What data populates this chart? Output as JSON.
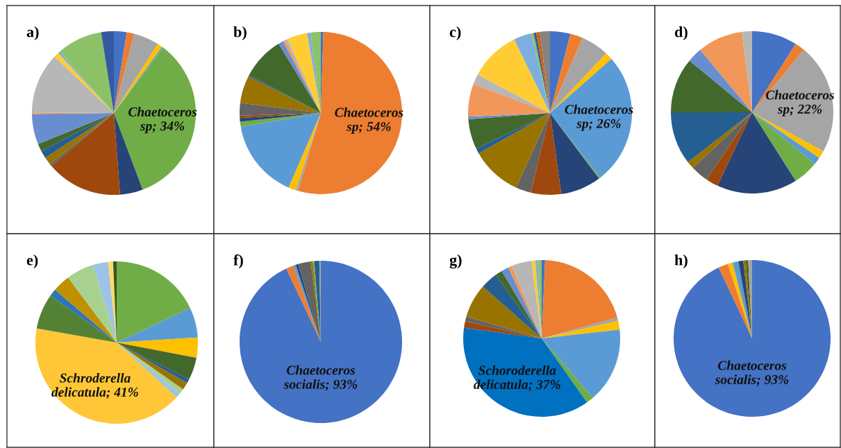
{
  "chart_data": [
    {
      "type": "pie",
      "title": "a)",
      "categories": [
        null,
        null,
        null,
        null,
        null,
        "Chaetoceros sp",
        null,
        null,
        null,
        null,
        null,
        null,
        null,
        null,
        null,
        null,
        null,
        null,
        null
      ],
      "values": [
        2.5,
        1.5,
        5,
        1,
        0.3,
        34,
        4.5,
        15,
        0.5,
        1.5,
        1.5,
        1.5,
        6,
        0.3,
        12,
        1,
        0.4,
        9,
        2.5
      ],
      "value_labels": [
        null,
        null,
        null,
        null,
        null,
        "34%",
        null,
        null,
        null,
        null,
        null,
        null,
        null,
        null,
        null,
        null,
        null,
        null,
        null
      ],
      "colors": [
        "#4472c4",
        "#ed7d31",
        "#a5a5a5",
        "#ffc000",
        "#5b9bd5",
        "#70ad47",
        "#264478",
        "#9e480e",
        "#636363",
        "#997300",
        "#255e91",
        "#43682b",
        "#698ed0",
        "#f1975a",
        "#b7b7b7",
        "#ffcd33",
        "#7cafdd",
        "#8cc168",
        "#335aa1"
      ]
    },
    {
      "type": "pie",
      "title": "b)",
      "categories": [
        null,
        "Chaetoceros sp",
        null,
        null,
        null,
        null,
        null,
        null,
        null,
        null,
        null,
        null,
        null,
        null,
        null,
        null,
        null,
        null
      ],
      "values": [
        0.5,
        54,
        0.5,
        1.5,
        15.8,
        1,
        0.7,
        0.5,
        2.5,
        5.5,
        0.3,
        8.5,
        1,
        0.5,
        0.5,
        4,
        0.7,
        2
      ],
      "value_labels": [
        null,
        "54%",
        null,
        null,
        null,
        null,
        null,
        null,
        null,
        null,
        null,
        null,
        null,
        null,
        null,
        null,
        null,
        null
      ],
      "colors": [
        "#4472c4",
        "#ed7d31",
        "#a5a5a5",
        "#ffc000",
        "#5b9bd5",
        "#70ad47",
        "#264478",
        "#9e480e",
        "#636363",
        "#997300",
        "#255e91",
        "#43682b",
        "#698ed0",
        "#f1975a",
        "#b7b7b7",
        "#ffcd33",
        "#7cafdd",
        "#8cc168"
      ]
    },
    {
      "type": "pie",
      "title": "c)",
      "categories": [
        null,
        null,
        null,
        null,
        "Chaetoceros sp",
        null,
        null,
        null,
        null,
        null,
        null,
        null,
        null,
        null,
        null,
        null,
        null,
        null,
        null,
        null,
        null
      ],
      "values": [
        4,
        2.5,
        5.5,
        1.5,
        26,
        0.3,
        8,
        6,
        3,
        10,
        1,
        6,
        0.5,
        6.5,
        2,
        10,
        3.5,
        0.5,
        0.5,
        0.7,
        2
      ],
      "value_labels": [
        null,
        null,
        null,
        null,
        "26%",
        null,
        null,
        null,
        null,
        null,
        null,
        null,
        null,
        null,
        null,
        null,
        null,
        null,
        null,
        null,
        null
      ],
      "colors": [
        "#4472c4",
        "#ed7d31",
        "#a5a5a5",
        "#ffc000",
        "#5b9bd5",
        "#70ad47",
        "#264478",
        "#9e480e",
        "#636363",
        "#997300",
        "#255e91",
        "#43682b",
        "#698ed0",
        "#f1975a",
        "#b7b7b7",
        "#ffcd33",
        "#7cafdd",
        "#8cc168",
        "#335aa1",
        "#d26012",
        "#848484"
      ]
    },
    {
      "type": "pie",
      "title": "d)",
      "categories": [
        null,
        null,
        "Chaetoceros sp",
        null,
        null,
        null,
        null,
        null,
        null,
        null,
        null,
        null,
        null,
        null,
        null
      ],
      "values": [
        9,
        2,
        22,
        1.5,
        1.5,
        5,
        16,
        2.5,
        3.5,
        1.5,
        10.5,
        11,
        3,
        9,
        2
      ],
      "value_labels": [
        null,
        null,
        "22%",
        null,
        null,
        null,
        null,
        null,
        null,
        null,
        null,
        null,
        null,
        null,
        null
      ],
      "colors": [
        "#4472c4",
        "#ed7d31",
        "#a5a5a5",
        "#ffc000",
        "#5b9bd5",
        "#70ad47",
        "#264478",
        "#9e480e",
        "#636363",
        "#997300",
        "#255e91",
        "#43682b",
        "#698ed0",
        "#f1975a",
        "#b7b7b7"
      ]
    },
    {
      "type": "pie",
      "title": "e)",
      "categories": [
        null,
        null,
        null,
        null,
        null,
        null,
        null,
        null,
        "Schroderella delicatula",
        null,
        null,
        null,
        null,
        null,
        null,
        null
      ],
      "values": [
        18,
        6,
        4,
        4.5,
        0.8,
        1.5,
        1,
        1,
        41,
        7,
        1.5,
        3.5,
        5.5,
        3,
        1,
        0.7
      ],
      "value_labels": [
        null,
        null,
        null,
        null,
        null,
        null,
        null,
        null,
        "41%",
        null,
        null,
        null,
        null,
        null,
        null,
        null
      ],
      "colors": [
        "#70ad47",
        "#5b9bd5",
        "#ffc000",
        "#43682b",
        "#255e91",
        "#997300",
        "#a9d18e",
        "#9dc3e6",
        "#ffc738",
        "#548235",
        "#2e75b6",
        "#bf9000",
        "#a9d18e",
        "#9dc3e6",
        "#ffd966",
        "#375623"
      ]
    },
    {
      "type": "pie",
      "title": "f)",
      "categories": [
        "Chaetoceros socialis",
        null,
        null,
        null,
        null,
        null,
        null,
        null,
        null
      ],
      "values": [
        93,
        1.5,
        0.5,
        0.5,
        2.5,
        0.4,
        0.3,
        1,
        0.3
      ],
      "value_labels": [
        "93%",
        null,
        null,
        null,
        null,
        null,
        null,
        null,
        null
      ],
      "colors": [
        "#4472c4",
        "#ed7d31",
        "#5b9bd5",
        "#264478",
        "#636363",
        "#997300",
        "#70ad47",
        "#255e91",
        "#a5a5a5"
      ]
    },
    {
      "type": "pie",
      "title": "g)",
      "categories": [
        null,
        null,
        null,
        null,
        null,
        null,
        "Schoroderella delicatula",
        null,
        null,
        null,
        null,
        null,
        null,
        null,
        null,
        null,
        null,
        null
      ],
      "values": [
        0.7,
        20,
        0.7,
        1.8,
        15.5,
        1.5,
        37,
        1.3,
        1,
        7,
        3.5,
        1.5,
        1.5,
        0.8,
        4.1,
        0.8,
        0.5,
        0.8
      ],
      "value_labels": [
        null,
        null,
        null,
        null,
        null,
        null,
        "37%",
        null,
        null,
        null,
        null,
        null,
        null,
        null,
        null,
        null,
        null,
        null
      ],
      "colors": [
        "#4472c4",
        "#ed7d31",
        "#a5a5a5",
        "#ffc000",
        "#5b9bd5",
        "#70ad47",
        "#0070c0",
        "#9e480e",
        "#636363",
        "#997300",
        "#255e91",
        "#43682b",
        "#698ed0",
        "#f1975a",
        "#b7b7b7",
        "#ffcd33",
        "#7cafdd",
        "#8cc168"
      ]
    },
    {
      "type": "pie",
      "title": "h)",
      "categories": [
        "Chaetoceros socialis",
        null,
        null,
        null,
        null,
        null,
        null,
        null
      ],
      "values": [
        93,
        2,
        1,
        1.2,
        1,
        0.5,
        0.5,
        0.8
      ],
      "value_labels": [
        "93%",
        null,
        null,
        null,
        null,
        null,
        null,
        null
      ],
      "colors": [
        "#4472c4",
        "#ed7d31",
        "#ffc000",
        "#5b9bd5",
        "#264478",
        "#997300",
        "#43682b",
        "#a5a5a5"
      ]
    }
  ]
}
